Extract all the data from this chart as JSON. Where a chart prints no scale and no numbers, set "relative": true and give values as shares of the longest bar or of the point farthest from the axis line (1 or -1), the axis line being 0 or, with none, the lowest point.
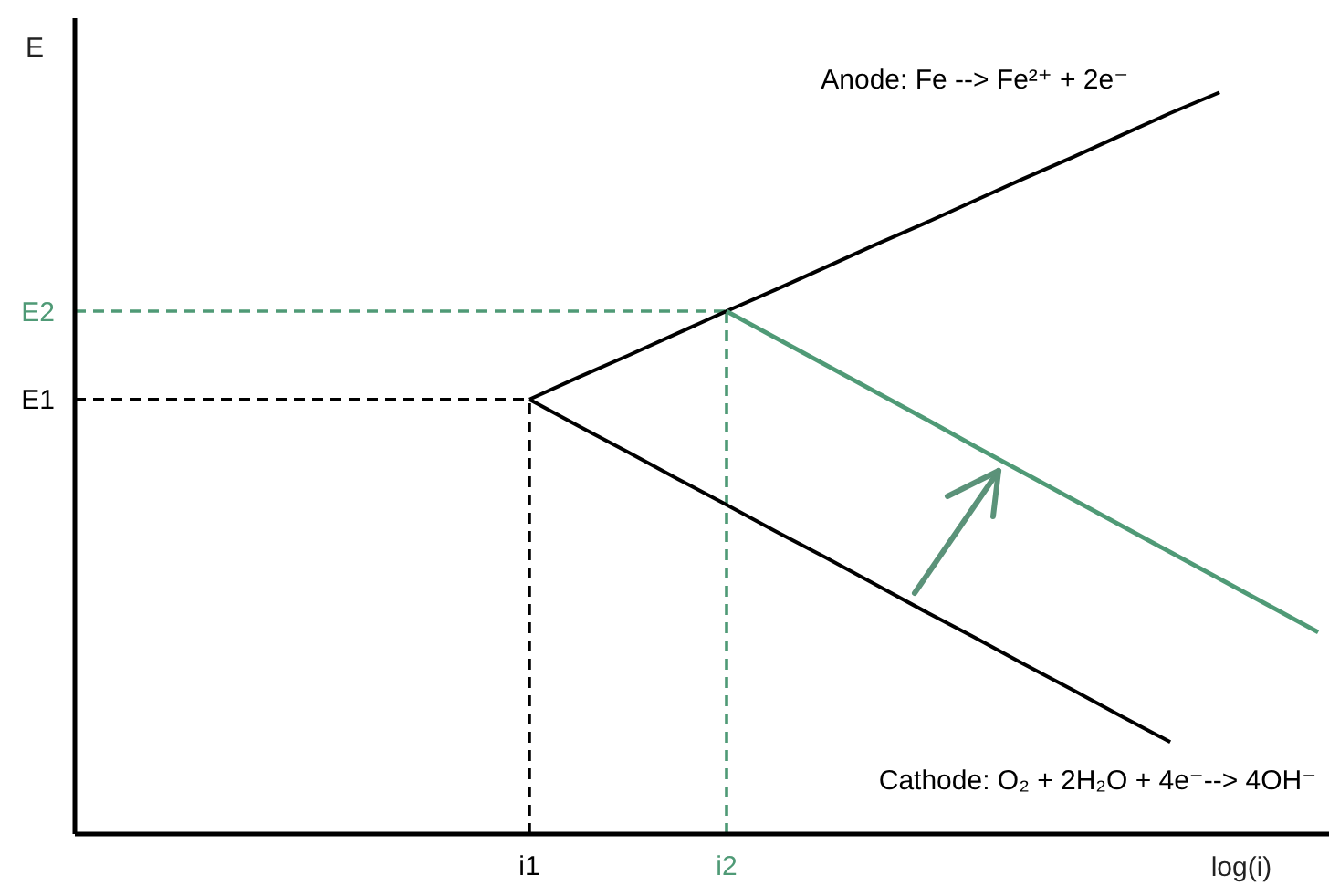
{
  "chart_data": {
    "type": "line",
    "relative": true,
    "ylabel": "E",
    "xlabel": "log(i)",
    "categories": [
      null,
      null,
      null,
      null,
      null,
      null,
      null,
      null,
      null,
      "i1",
      null,
      null,
      null,
      "i2",
      null,
      null,
      null,
      null,
      null,
      null,
      null,
      null,
      null,
      null,
      null,
      null
    ],
    "series": [
      {
        "name": "Anode: Fe --> Fe²⁺ + 2e⁻",
        "color": "#000000",
        "values": [
          null,
          null,
          null,
          null,
          null,
          null,
          null,
          null,
          null,
          0.586,
          0.616,
          0.645,
          0.675,
          0.705,
          0.734,
          0.764,
          0.794,
          0.823,
          0.853,
          0.883,
          0.912,
          0.942,
          0.972,
          1.0,
          null,
          null
        ]
      },
      {
        "name": "Cathode: O₂ + 2H₂O + 4e⁻--> 4OH⁻",
        "color": "#000000",
        "values": [
          null,
          null,
          null,
          null,
          null,
          null,
          null,
          null,
          null,
          0.586,
          0.55,
          0.515,
          0.479,
          0.444,
          0.408,
          0.373,
          0.337,
          0.301,
          0.266,
          0.23,
          0.195,
          0.159,
          0.124,
          null,
          null,
          null
        ]
      },
      {
        "color": "#4f9a76",
        "values": [
          null,
          null,
          null,
          null,
          null,
          null,
          null,
          null,
          null,
          null,
          null,
          null,
          null,
          0.705,
          0.669,
          0.633,
          0.597,
          0.561,
          0.524,
          0.488,
          0.452,
          0.416,
          0.38,
          0.344,
          0.308,
          0.272
        ]
      }
    ],
    "ref_lines": [
      {
        "axis": "y",
        "value": 0.586,
        "label": "E1",
        "color": "#000000",
        "line_style": "dashed"
      },
      {
        "axis": "y",
        "value": 0.705,
        "label": "E2",
        "color": "#4f9a76",
        "line_style": "dashed"
      },
      {
        "axis": "x",
        "value": "i1",
        "color": "#000000",
        "line_style": "dashed"
      },
      {
        "axis": "x",
        "value": "i2",
        "color": "#4f9a76",
        "line_style": "dashed"
      }
    ],
    "marker": "none",
    "line_style": "solid"
  }
}
